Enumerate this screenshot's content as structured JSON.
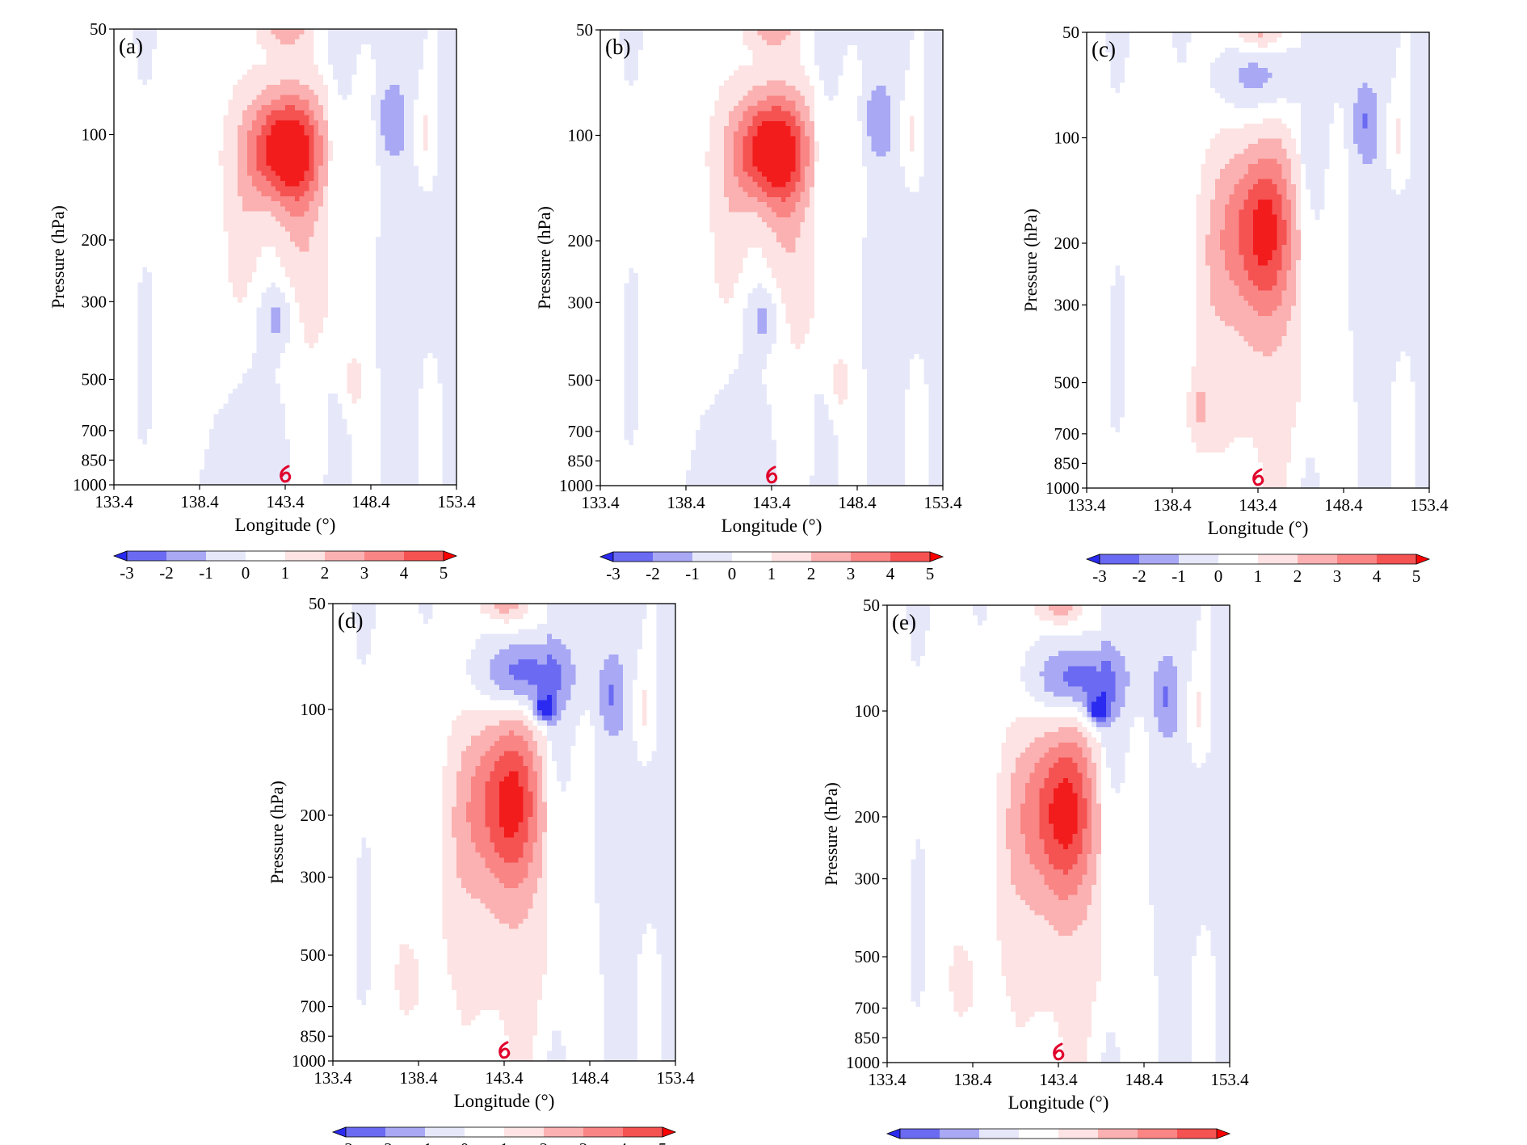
{
  "chart_data": {
    "type": "heatmap",
    "panels": [
      {
        "label": "(a)",
        "xlabel": "Longitude (°)",
        "ylabel": "Pressure (hPa)",
        "upper_max": {
          "lon": 143.4,
          "p": 110,
          "peak": 5
        },
        "upper_min": {
          "present": false,
          "lon": 145.0,
          "p": 75,
          "peak": 0
        },
        "mid_neg": {
          "present": true,
          "lon": 143.0,
          "p": 330,
          "peak": -1.5
        },
        "pos_spot": {
          "lon": 147.4,
          "p": 500,
          "peak": 1.5
        }
      },
      {
        "label": "(b)",
        "xlabel": "Longitude (°)",
        "ylabel": "Pressure (hPa)",
        "upper_max": {
          "lon": 143.4,
          "p": 110,
          "peak": 5
        },
        "upper_min": {
          "present": false,
          "lon": 145.0,
          "p": 75,
          "peak": 0
        },
        "mid_neg": {
          "present": true,
          "lon": 143.0,
          "p": 330,
          "peak": -1.5
        },
        "pos_spot": {
          "lon": 147.4,
          "p": 500,
          "peak": 1.5
        }
      },
      {
        "label": "(c)",
        "xlabel": "Longitude (°)",
        "ylabel": "Pressure (hPa)",
        "upper_max": {
          "lon": 143.4,
          "p": 180,
          "peak": 4
        },
        "upper_min": {
          "present": true,
          "lon": 143.4,
          "p": 68,
          "peak": -1.5
        },
        "mid_neg": {
          "present": false,
          "lon": 143.0,
          "p": 330,
          "peak": 0
        },
        "pos_spot": {
          "lon": 140.0,
          "p": 600,
          "peak": 1.5
        }
      },
      {
        "label": "(d)",
        "xlabel": "Longitude (°)",
        "ylabel": "Pressure (hPa)",
        "upper_max": {
          "lon": 143.4,
          "p": 180,
          "peak": 4
        },
        "upper_min": {
          "present": true,
          "lon": 144.5,
          "p": 80,
          "peak": -3
        },
        "mid_neg": {
          "present": false,
          "lon": 143.0,
          "p": 330,
          "peak": 0
        },
        "pos_spot": {
          "lon": 137.8,
          "p": 600,
          "peak": 1.5
        }
      },
      {
        "label": "(e)",
        "xlabel": "Longitude (°)",
        "ylabel": "Pressure (hPa)",
        "upper_max": {
          "lon": 143.4,
          "p": 190,
          "peak": 4
        },
        "upper_min": {
          "present": true,
          "lon": 144.5,
          "p": 82,
          "peak": -3
        },
        "mid_neg": {
          "present": false,
          "lon": 143.0,
          "p": 330,
          "peak": 0
        },
        "pos_spot": {
          "lon": 137.8,
          "p": 600,
          "peak": 1.5
        }
      }
    ],
    "x_ticks": [
      "133.4",
      "138.4",
      "143.4",
      "148.4",
      "153.4"
    ],
    "x_tick_values": [
      133.4,
      138.4,
      143.4,
      148.4,
      153.4
    ],
    "xlim": [
      133.4,
      153.4
    ],
    "y_ticks": [
      "50",
      "100",
      "200",
      "300",
      "500",
      "700",
      "850",
      "1000"
    ],
    "y_tick_values": [
      50,
      100,
      200,
      300,
      500,
      700,
      850,
      1000
    ],
    "ylim": [
      1000,
      50
    ],
    "y_scale": "log",
    "colorbar": {
      "ticks": [
        "-3",
        "-2",
        "-1",
        "0",
        "1",
        "2",
        "3",
        "4",
        "5"
      ],
      "levels": [
        -3,
        -2,
        -1,
        0,
        1,
        2,
        3,
        4,
        5
      ],
      "extend": "both",
      "colors": [
        "#2a2af0",
        "#6a6af2",
        "#a8a8f4",
        "#e6e8fa",
        "#ffffff",
        "#fde3e3",
        "#fbb1b1",
        "#f98585",
        "#f55252",
        "#f21c1c",
        "#ff0000"
      ]
    },
    "typhoon_marker": {
      "lon": 143.4,
      "p": 1000,
      "color": "#e0002a",
      "icon": "typhoon-icon"
    }
  }
}
